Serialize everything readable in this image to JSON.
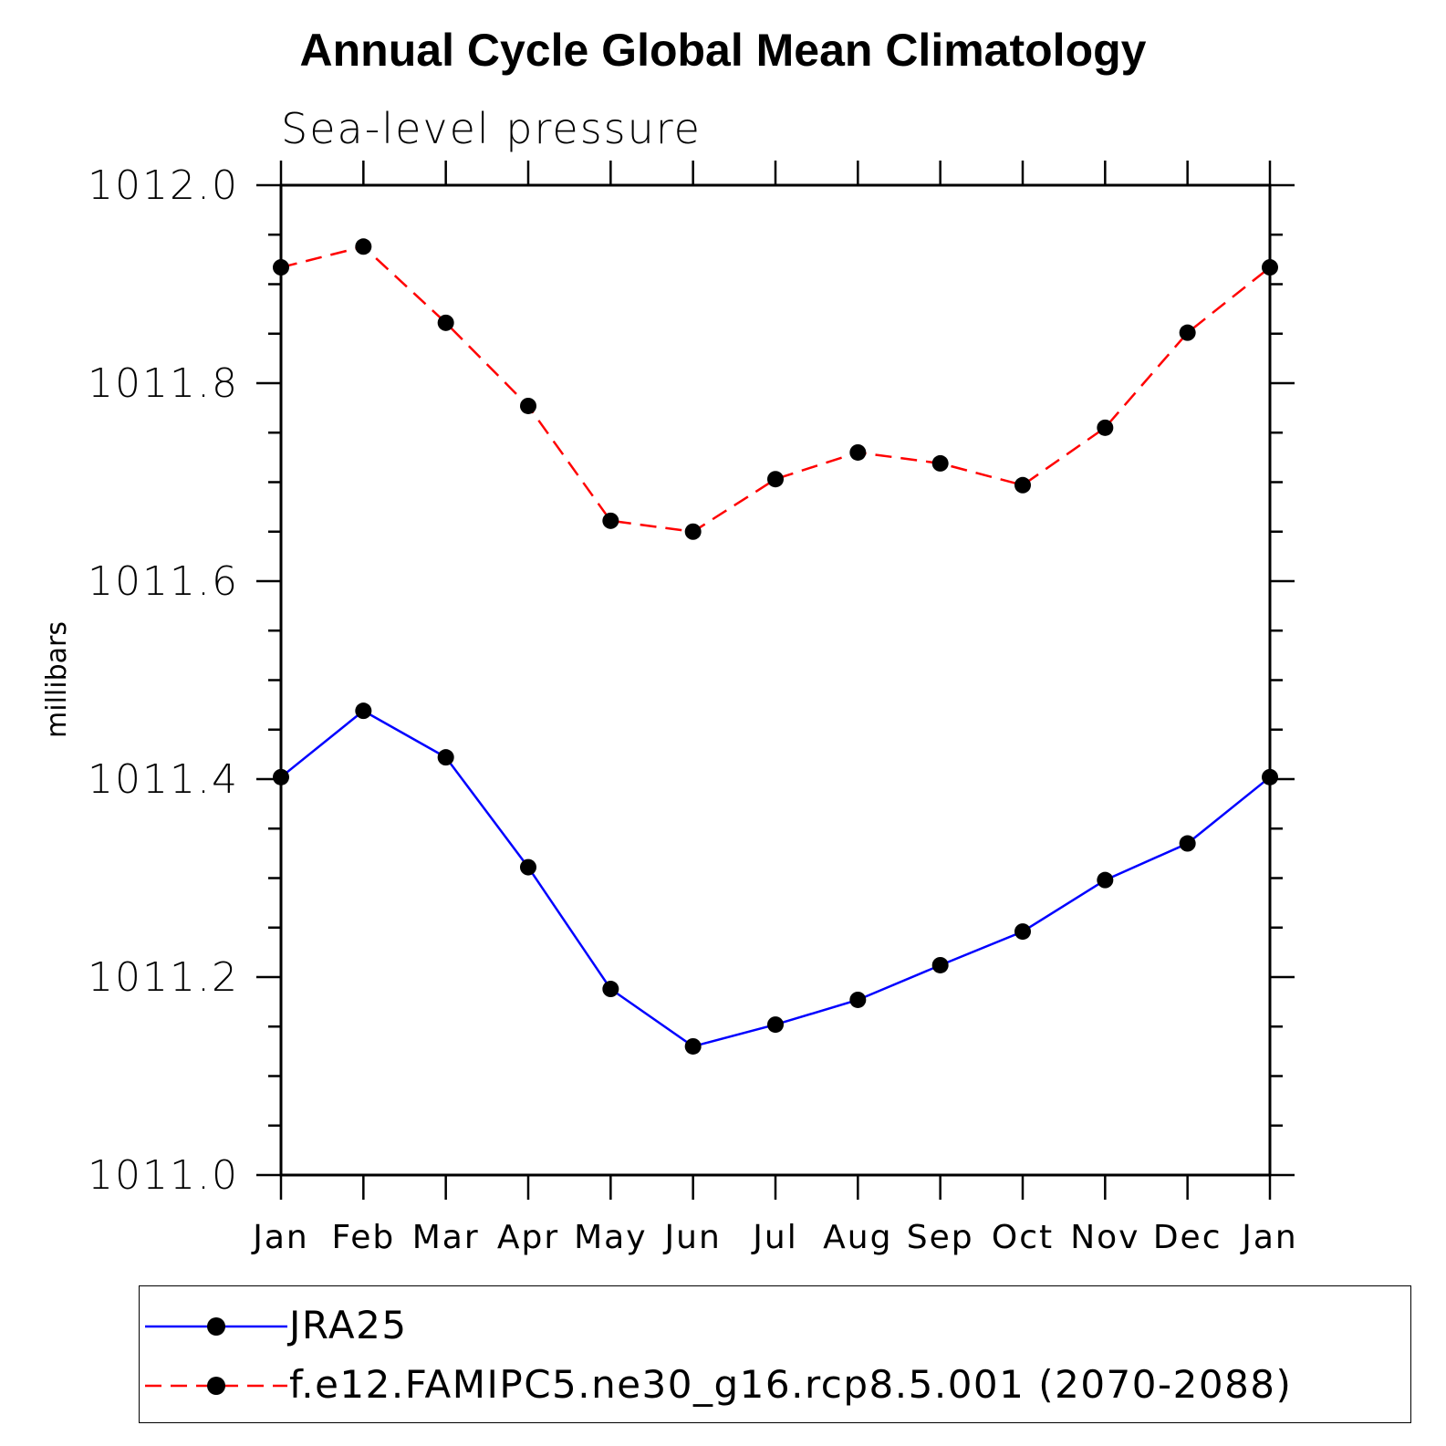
{
  "chart_data": {
    "type": "line",
    "title": "Annual Cycle Global Mean Climatology",
    "subtitle": "Sea-level pressure",
    "xlabel": "",
    "ylabel": "millibars",
    "categories": [
      "Jan",
      "Feb",
      "Mar",
      "Apr",
      "May",
      "Jun",
      "Jul",
      "Aug",
      "Sep",
      "Oct",
      "Nov",
      "Dec",
      "Jan"
    ],
    "ylim": [
      1011.0,
      1012.0
    ],
    "yticks": [
      "1011.0",
      "1011.2",
      "1011.4",
      "1011.6",
      "1011.8",
      "1012.0"
    ],
    "series": [
      {
        "name": "JRA25",
        "color": "#0000ff",
        "style": "solid",
        "values": [
          1011.402,
          1011.469,
          1011.422,
          1011.311,
          1011.188,
          1011.13,
          1011.152,
          1011.177,
          1011.212,
          1011.246,
          1011.298,
          1011.335,
          1011.402
        ]
      },
      {
        "name": "f.e12.FAMIPC5.ne30_g16.rcp8.5.001 (2070-2088)",
        "color": "#ff0000",
        "style": "dashed",
        "values": [
          1011.917,
          1011.938,
          1011.861,
          1011.777,
          1011.661,
          1011.65,
          1011.703,
          1011.73,
          1011.719,
          1011.697,
          1011.755,
          1011.851,
          1011.917
        ]
      }
    ],
    "legend_position": "bottom"
  }
}
